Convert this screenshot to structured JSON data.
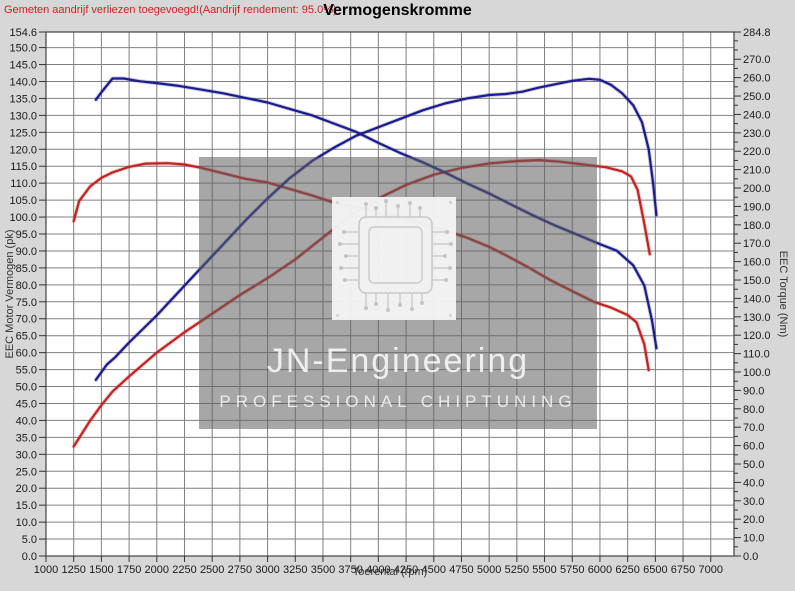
{
  "header": {
    "note": "Gemeten aandrijf verliezen toegevoegd!(Aandrijf rendement: 95.0%)",
    "title": "Vermogenskromme"
  },
  "watermark": {
    "line1": "JN-Engineering",
    "line2": "PROFESSIONAL CHIPTUNING",
    "logo": "chip-circuit-logo"
  },
  "colors": {
    "tuned_curve": "#1c1c8c",
    "original_curve": "#c42222",
    "note_text": "#cc2222",
    "grid": "#808080",
    "plot_frame": "#444444",
    "outer_background": "#d7d7d7",
    "plot_background": "#ffffff",
    "watermark_box": "rgba(95,95,95,0.55)"
  },
  "chart_data": {
    "type": "line",
    "title": "Vermogenskromme",
    "grid": true,
    "legend": "none",
    "x_axis": {
      "label": "Toerental (rpm)",
      "min": 1000,
      "max": 7210,
      "ticks": [
        1000,
        1250,
        1500,
        1750,
        2000,
        2250,
        2500,
        2750,
        3000,
        3250,
        3500,
        3750,
        4000,
        4250,
        4500,
        4750,
        5000,
        5250,
        5500,
        5750,
        6000,
        6250,
        6500,
        6750,
        7000
      ]
    },
    "y_left": {
      "label": "EEC Motor Vermogen (pk)",
      "min": 0,
      "max": 154.6,
      "ticks": [
        0,
        5,
        10,
        15,
        20,
        25,
        30,
        35,
        40,
        45,
        50,
        55,
        60,
        65,
        70,
        75,
        80,
        85,
        90,
        95,
        100,
        105,
        110,
        115,
        120,
        125,
        130,
        135,
        140,
        145,
        150,
        154.6
      ]
    },
    "y_right": {
      "label": "EEC Torque (Nm)",
      "min": 0,
      "max": 284.8,
      "ticks": [
        0,
        10,
        20,
        30,
        40,
        50,
        60,
        70,
        80,
        90,
        100,
        110,
        120,
        130,
        140,
        150,
        160,
        170,
        180,
        190,
        200,
        210,
        220,
        230,
        240,
        250,
        260,
        270,
        284.8
      ]
    },
    "series": [
      {
        "name": "torque-original",
        "axis": "right",
        "unit": "Nm",
        "color": "#c42222",
        "points": [
          [
            1250,
            182
          ],
          [
            1300,
            193
          ],
          [
            1400,
            201
          ],
          [
            1500,
            205.5
          ],
          [
            1600,
            208.5
          ],
          [
            1750,
            211.5
          ],
          [
            1900,
            213.3
          ],
          [
            2100,
            213.5
          ],
          [
            2250,
            212.8
          ],
          [
            2400,
            211
          ],
          [
            2600,
            208
          ],
          [
            2800,
            205
          ],
          [
            3000,
            203
          ],
          [
            3200,
            199.5
          ],
          [
            3400,
            196
          ],
          [
            3600,
            192
          ],
          [
            3800,
            189.5
          ],
          [
            4000,
            187
          ],
          [
            4200,
            184
          ],
          [
            4400,
            180.5
          ],
          [
            4600,
            177
          ],
          [
            4800,
            173
          ],
          [
            5000,
            168
          ],
          [
            5150,
            163.5
          ],
          [
            5350,
            157
          ],
          [
            5550,
            150
          ],
          [
            5750,
            144
          ],
          [
            5950,
            138
          ],
          [
            6100,
            135
          ],
          [
            6250,
            131
          ],
          [
            6330,
            127
          ],
          [
            6400,
            115
          ],
          [
            6440,
            101
          ]
        ]
      },
      {
        "name": "power-original",
        "axis": "left",
        "unit": "pk",
        "color": "#c42222",
        "points": [
          [
            1250,
            32.3
          ],
          [
            1400,
            40
          ],
          [
            1500,
            44.5
          ],
          [
            1600,
            48.5
          ],
          [
            1750,
            53
          ],
          [
            2000,
            60
          ],
          [
            2250,
            66
          ],
          [
            2500,
            71.5
          ],
          [
            2750,
            77
          ],
          [
            3000,
            82
          ],
          [
            3250,
            87.5
          ],
          [
            3500,
            94
          ],
          [
            3750,
            100.5
          ],
          [
            4000,
            105.5
          ],
          [
            4250,
            109.5
          ],
          [
            4500,
            112.5
          ],
          [
            4750,
            114.5
          ],
          [
            5000,
            115.8
          ],
          [
            5250,
            116.5
          ],
          [
            5450,
            116.8
          ],
          [
            5650,
            116.3
          ],
          [
            5850,
            115.5
          ],
          [
            6050,
            114.7
          ],
          [
            6200,
            113.5
          ],
          [
            6280,
            112
          ],
          [
            6340,
            108
          ],
          [
            6400,
            98
          ],
          [
            6450,
            89
          ]
        ]
      },
      {
        "name": "torque-tuned",
        "axis": "right",
        "unit": "Nm",
        "color": "#1c1c8c",
        "points": [
          [
            1450,
            248
          ],
          [
            1500,
            252
          ],
          [
            1600,
            259.5
          ],
          [
            1700,
            259.5
          ],
          [
            1850,
            258
          ],
          [
            2000,
            257
          ],
          [
            2200,
            255.5
          ],
          [
            2400,
            253.5
          ],
          [
            2600,
            251.5
          ],
          [
            2800,
            249
          ],
          [
            3000,
            246.5
          ],
          [
            3200,
            243
          ],
          [
            3400,
            239.5
          ],
          [
            3600,
            235
          ],
          [
            3800,
            230.5
          ],
          [
            4000,
            224.5
          ],
          [
            4200,
            219
          ],
          [
            4400,
            214
          ],
          [
            4600,
            208.5
          ],
          [
            4800,
            202.5
          ],
          [
            5000,
            197
          ],
          [
            5200,
            191
          ],
          [
            5400,
            185
          ],
          [
            5600,
            179.5
          ],
          [
            5800,
            174.5
          ],
          [
            6000,
            169.5
          ],
          [
            6150,
            166
          ],
          [
            6300,
            158
          ],
          [
            6400,
            147
          ],
          [
            6470,
            128
          ],
          [
            6510,
            113
          ]
        ]
      },
      {
        "name": "power-tuned",
        "axis": "left",
        "unit": "pk",
        "color": "#1c1c8c",
        "points": [
          [
            1450,
            52
          ],
          [
            1550,
            56.5
          ],
          [
            1620,
            58.5
          ],
          [
            1750,
            63
          ],
          [
            2000,
            71
          ],
          [
            2200,
            78
          ],
          [
            2400,
            85
          ],
          [
            2600,
            92
          ],
          [
            2800,
            99
          ],
          [
            3000,
            105.5
          ],
          [
            3200,
            111.5
          ],
          [
            3400,
            116.5
          ],
          [
            3600,
            120.5
          ],
          [
            3800,
            124
          ],
          [
            4000,
            126.5
          ],
          [
            4200,
            129
          ],
          [
            4400,
            131.5
          ],
          [
            4600,
            133.5
          ],
          [
            4800,
            135
          ],
          [
            5000,
            136
          ],
          [
            5150,
            136.3
          ],
          [
            5300,
            137
          ],
          [
            5450,
            138.2
          ],
          [
            5600,
            139.2
          ],
          [
            5750,
            140.2
          ],
          [
            5900,
            140.8
          ],
          [
            6000,
            140.5
          ],
          [
            6100,
            139
          ],
          [
            6200,
            136.5
          ],
          [
            6300,
            133
          ],
          [
            6380,
            128
          ],
          [
            6440,
            120
          ],
          [
            6480,
            110
          ],
          [
            6510,
            100.6
          ]
        ]
      }
    ]
  }
}
